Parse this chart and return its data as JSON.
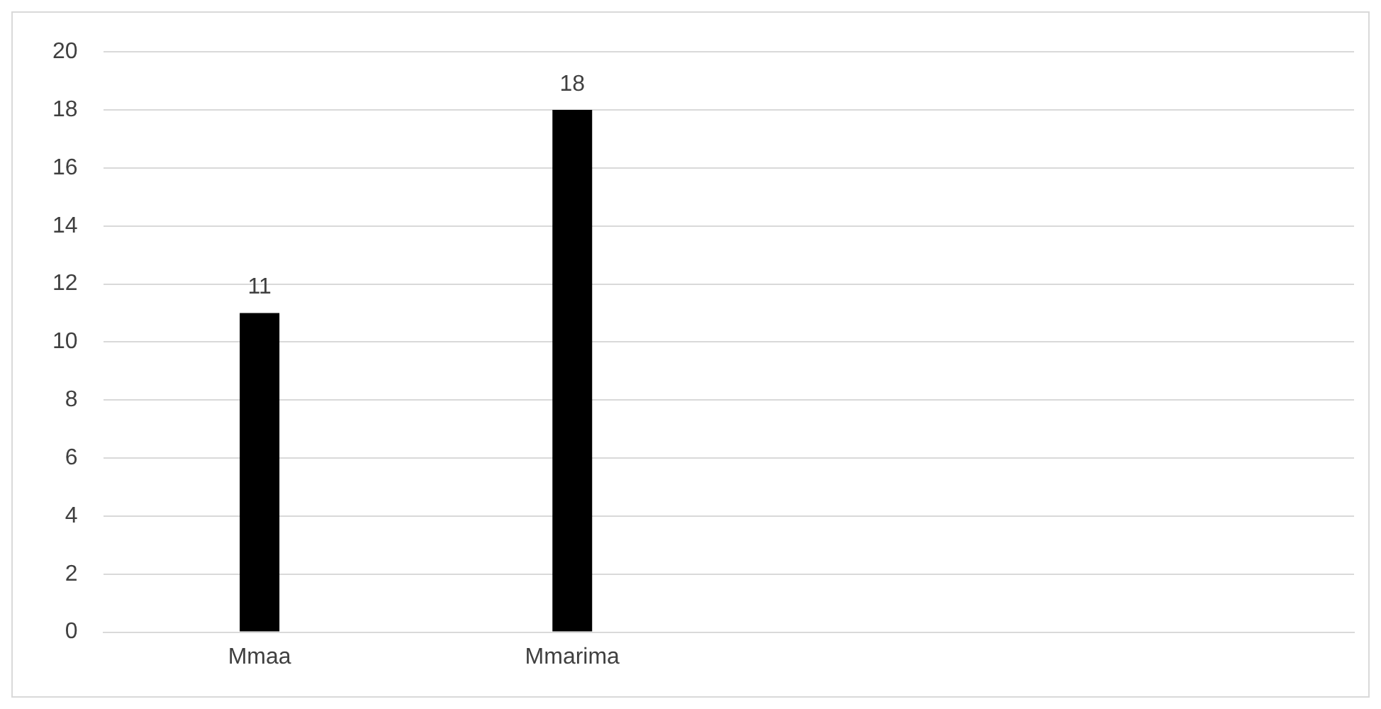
{
  "chart_data": {
    "type": "bar",
    "categories": [
      "Mmaa",
      "Mmarima",
      null,
      null
    ],
    "values": [
      11,
      18,
      null,
      null
    ],
    "color": "#000000",
    "ylim": [
      0,
      20
    ],
    "yticks": [
      0,
      2,
      4,
      6,
      8,
      10,
      12,
      14,
      16,
      18,
      20
    ],
    "grid": "y",
    "data_labels": true,
    "legend": false
  }
}
